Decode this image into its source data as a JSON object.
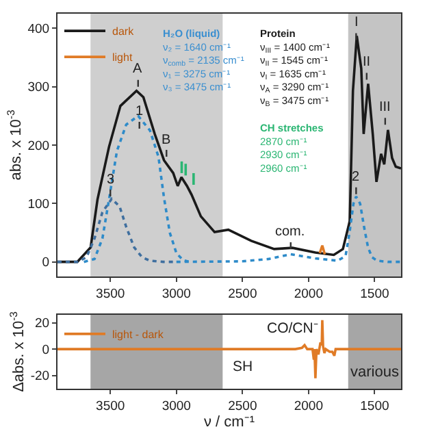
{
  "chart_data": [
    {
      "type": "line",
      "ylabel": "abs. x 10$^{-3}$",
      "xlim": [
        3900,
        1300
      ],
      "xticks": [
        3500,
        3000,
        2500,
        2000,
        1500
      ],
      "ylim": [
        -25,
        425
      ],
      "yticks": [
        0,
        100,
        200,
        300,
        400
      ],
      "grid": false,
      "legend": "top left",
      "series": [
        {
          "name": "dark",
          "color": "#1a1a1a",
          "x": [
            3900,
            3750,
            3649,
            3597,
            3510,
            3424,
            3302,
            3250,
            3164,
            3094,
            3024,
            2990,
            2962,
            2920,
            2885,
            2815,
            2711,
            2607,
            2434,
            2260,
            2122,
            1948,
            1809,
            1740,
            1688,
            1664,
            1635,
            1601,
            1583,
            1549,
            1514,
            1486,
            1451,
            1427,
            1399,
            1368,
            1340,
            1300
          ],
          "values": [
            0,
            0,
            25,
            107,
            197,
            267,
            293,
            282,
            219,
            174,
            152,
            130,
            145,
            130,
            115,
            78,
            51,
            55,
            36,
            22,
            24,
            16,
            12,
            22,
            70,
            293,
            387,
            331,
            219,
            305,
            219,
            137,
            185,
            167,
            226,
            178,
            163,
            160
          ]
        },
        {
          "name": "light",
          "color": "#e07b26",
          "x": [
            1915,
            1896,
            1877
          ],
          "values": [
            15,
            28,
            13
          ]
        },
        {
          "color": "#2e8bc9",
          "line_style": "dotted",
          "x": [
            3700,
            3620,
            3560,
            3510,
            3450,
            3380,
            3290,
            3200,
            3136,
            3094,
            3050,
            3000,
            2950,
            2900
          ],
          "values": [
            0,
            5,
            40,
            107,
            190,
            235,
            250,
            225,
            180,
            110,
            50,
            15,
            3,
            0
          ]
        },
        {
          "color": "#3f6f9f",
          "line_style": "dotted",
          "x": [
            3900,
            3750,
            3680,
            3620,
            3560,
            3490,
            3430,
            3380,
            3320,
            3260,
            3200,
            3100,
            3000
          ],
          "values": [
            0,
            0,
            8,
            40,
            85,
            108,
            95,
            60,
            25,
            8,
            2,
            0,
            0
          ]
        },
        {
          "color": "#2e8bc9",
          "line_style": "dotted",
          "x": [
            3000,
            2500,
            2300,
            2135,
            1950,
            1780,
            1720,
            1690,
            1660,
            1640,
            1610,
            1580,
            1550,
            1520,
            1480,
            1400,
            1300
          ],
          "values": [
            0,
            1,
            5,
            13,
            6,
            2,
            10,
            50,
            100,
            112,
            100,
            60,
            25,
            8,
            2,
            0,
            0
          ]
        },
        {
          "color": "#2bb673",
          "x": [
            2960,
            2960,
            2945,
            2930,
            2930,
            2900,
            2870,
            2870
          ],
          "values": [
            152,
            172,
            null,
            148,
            168,
            null,
            132,
            152
          ]
        }
      ],
      "bands": [
        {
          "axis": "x",
          "from": 3650,
          "to": 2650,
          "color": "#cfcfcf"
        },
        {
          "axis": "x",
          "from": 1700,
          "to": 1300,
          "color": "#c4c4c4"
        }
      ],
      "annotations": [
        "H₂O (liquid)\nν₂ = 1640 cm⁻¹\nν$_{comb}$ = 2135 cm⁻¹\nν₁ = 3275 cm⁻¹\nν₃ = 3475 cm⁻¹",
        "Protein\nν$_{III}$ = 1400 cm⁻¹\nν$_{II}$ = 1545 cm⁻¹\nν$_{I}$ = 1635 cm⁻¹\nν$_{A}$ = 3290 cm⁻¹\nν$_{B}$ = 3475 cm⁻¹",
        "CH stretches\n2870 cm⁻¹\n2930 cm⁻¹\n2960 cm⁻¹",
        {
          "text": "A",
          "x": 3290,
          "y": 300
        },
        {
          "text": "B",
          "x": 3075,
          "y": 180
        },
        {
          "text": "I",
          "x": 1640,
          "y": 380
        },
        {
          "text": "II",
          "x": 1560,
          "y": 312
        },
        {
          "text": "III",
          "x": 1420,
          "y": 235
        },
        {
          "text": "com.",
          "x": 2135,
          "y": 22
        },
        {
          "text": "1",
          "x": 3280,
          "y": 228
        },
        {
          "text": "2",
          "x": 1640,
          "y": 116
        },
        {
          "text": "3",
          "x": 3500,
          "y": 112
        }
      ]
    },
    {
      "type": "line",
      "ylabel": "Δabs. x 10$^{-3}$",
      "xlabel": "ν / cm⁻¹",
      "xlim": [
        3900,
        1300
      ],
      "xticks": [
        3500,
        3000,
        2500,
        2000,
        1500
      ],
      "ylim": [
        -30,
        26
      ],
      "yticks": [
        -20,
        0,
        20
      ],
      "grid": false,
      "legend": "top left",
      "series": [
        {
          "name": "light - dark",
          "color": "#e07b26",
          "x": [
            3900,
            2100,
            2050,
            2030,
            2010,
            1970,
            1960,
            1955,
            1948,
            1940,
            1925,
            1910,
            1900,
            1896,
            1890,
            1880,
            1870,
            1840,
            1820,
            1805,
            1795,
            1300
          ],
          "values": [
            0,
            0,
            1,
            3,
            0,
            0,
            -8,
            0,
            -22,
            0,
            -4,
            5,
            3,
            22,
            2,
            -3,
            0,
            -2,
            -2,
            -5,
            0,
            0
          ]
        }
      ],
      "bands": [
        {
          "axis": "x",
          "from": 3650,
          "to": 2650,
          "color": "#a6a6a6"
        },
        {
          "axis": "x",
          "from": 1700,
          "to": 1300,
          "color": "#a6a6a6",
          "label": "various"
        }
      ],
      "annotations": [
        "SH",
        "CO/CN⁻"
      ]
    }
  ]
}
